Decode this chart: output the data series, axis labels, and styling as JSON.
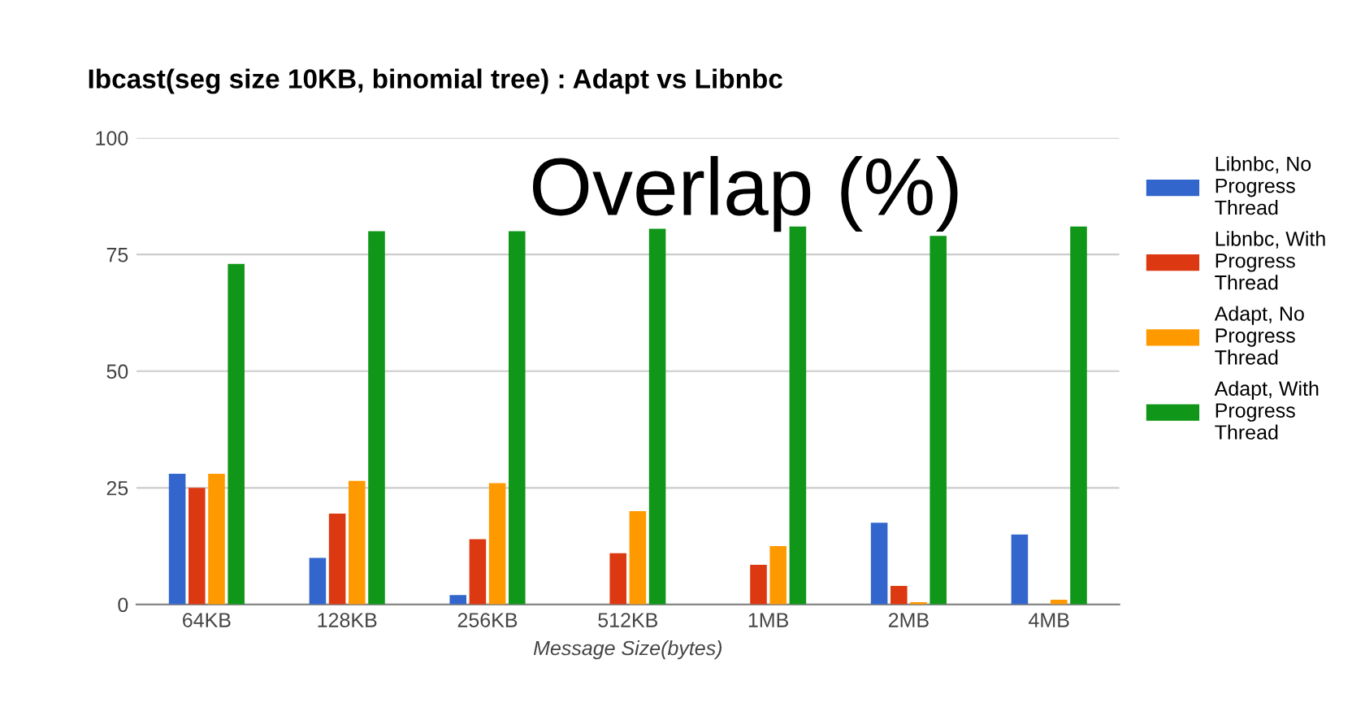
{
  "chart_data": {
    "type": "bar",
    "title": "Ibcast(seg size 10KB, binomial tree) : Adapt vs Libnbc",
    "xlabel": "Message Size(bytes)",
    "categories": [
      "64KB",
      "128KB",
      "256KB",
      "512KB",
      "1MB",
      "2MB",
      "4MB"
    ],
    "series": [
      {
        "name": "Libnbc, No Progress Thread",
        "color": "#3366cc",
        "values": [
          28,
          10,
          2,
          0,
          0,
          17.5,
          15
        ]
      },
      {
        "name": "Libnbc, With Progress Thread",
        "color": "#dc3912",
        "values": [
          25,
          19.5,
          14,
          11,
          8.5,
          4,
          0
        ]
      },
      {
        "name": "Adapt, No Progress Thread",
        "color": "#ff9900",
        "values": [
          28,
          26.5,
          26,
          20,
          12.5,
          0.5,
          1
        ]
      },
      {
        "name": "Adapt, With Progress Thread",
        "color": "#109618",
        "values": [
          73,
          80,
          80,
          80.5,
          81,
          79,
          81
        ]
      }
    ],
    "annotations": [
      "Overlap (%)"
    ],
    "ylim": [
      0,
      100
    ],
    "yticks": [
      0,
      25,
      50,
      75,
      100
    ],
    "grid": "y",
    "legend": "right"
  }
}
